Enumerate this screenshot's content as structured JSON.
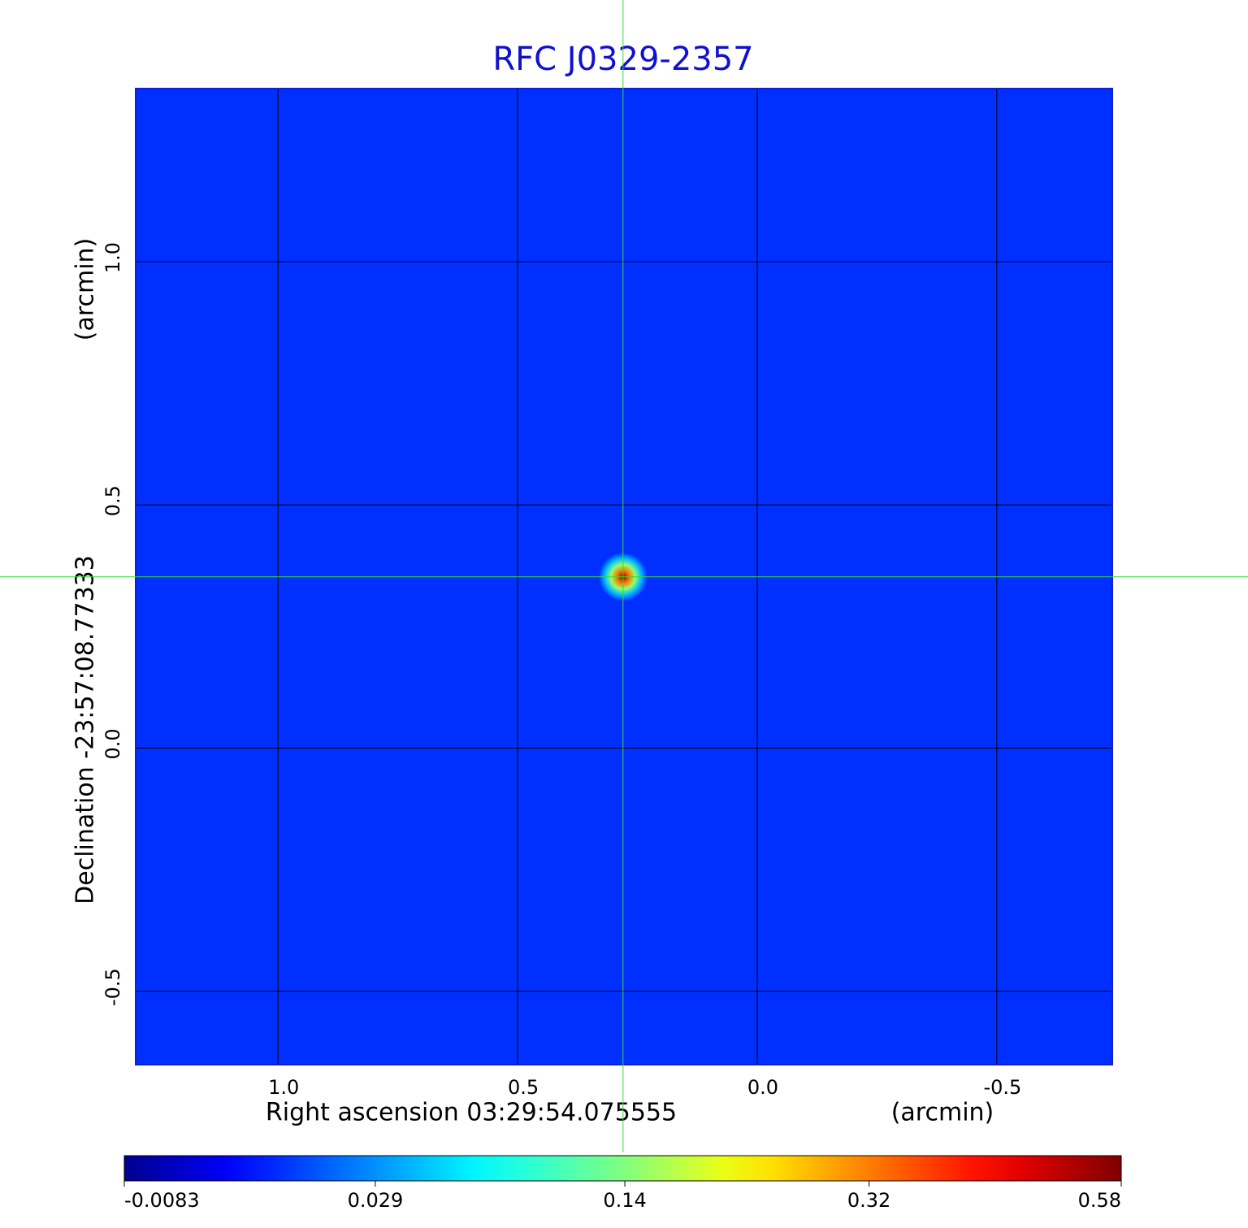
{
  "chart_data": {
    "type": "image",
    "title": "RFC J0329-2357",
    "xlabel": "Right ascension  03:29:54.075555",
    "xunit": "(arcmin)",
    "ylabel": "Declination  -23:57:08.77333",
    "yunit": "(arcmin)",
    "xlim": [
      1.297,
      -0.741
    ],
    "ylim": [
      -0.651,
      1.356
    ],
    "xticks": [
      {
        "value": 1,
        "label": "1.0"
      },
      0.5,
      {
        "value": 0,
        "label": "0.0"
      },
      -0.5
    ],
    "yticks": [
      {
        "value": -0.5,
        "label": "-0.5"
      },
      {
        "value": 0,
        "label": "0.0"
      },
      0.5,
      {
        "value": 1,
        "label": "1.0"
      }
    ],
    "grid": true,
    "colormap": "jet",
    "colorbar_scale": "sqrt",
    "colorbar_lim": [
      -0.0083,
      0.58
    ],
    "colorbar_ticks": [
      -0.0083,
      0.029,
      0.14,
      0.32,
      0.58
    ],
    "background_value": 0.006,
    "source": {
      "x": 0.28,
      "y": 0.352,
      "peak": 0.58
    },
    "crosshair": {
      "x": 0.28,
      "y": 0.352
    },
    "crosshair_color": "#33dd33"
  }
}
